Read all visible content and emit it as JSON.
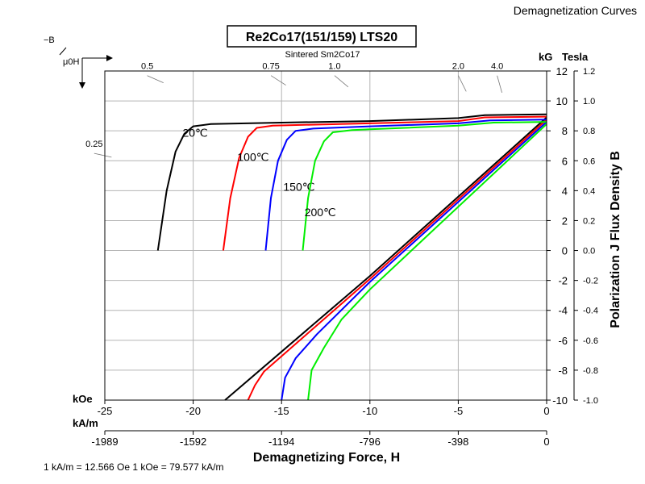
{
  "corner_title": "Demagnetization Curves",
  "chart_data": {
    "type": "line",
    "title": "Re2Co17(151/159) LTS20",
    "subtitle": "Sintered Sm2Co17",
    "xlabel": "Demagnetizing Force, H",
    "ylabel": "Polarization J Flux Density B",
    "x_unit_primary": "kOe",
    "x_unit_secondary": "kA/m",
    "y_unit_primary": "kG",
    "y_unit_secondary": "Tesla",
    "xlim": [
      -25,
      0
    ],
    "ylim": [
      -10,
      12
    ],
    "x_ticks_koe": [
      "-25",
      "-20",
      "-15",
      "-10",
      "-5",
      "0"
    ],
    "x_ticks_kam": [
      {
        "value": -25,
        "label": "-1989"
      },
      {
        "value": -20,
        "label": "-1592"
      },
      {
        "value": -15,
        "label": "-1194"
      },
      {
        "value": -10,
        "label": "-796"
      },
      {
        "value": -5,
        "label": "-398"
      },
      {
        "value": 0,
        "label": "0"
      }
    ],
    "y_ticks_kg": [
      "-10",
      "-8",
      "-6",
      "-4",
      "-2",
      "0",
      "2",
      "4",
      "6",
      "8",
      "10",
      "12"
    ],
    "y_ticks_tesla": [
      "-1.0",
      "-0.8",
      "-0.6",
      "-0.4",
      "-0.2",
      "0.0",
      "0.2",
      "0.4",
      "0.6",
      "0.8",
      "1.0",
      "1.2"
    ],
    "permeance_labels": [
      {
        "label": "0.5",
        "x": -22.6,
        "y": 11.8
      },
      {
        "label": "0.75",
        "x": -15.6,
        "y": 11.8
      },
      {
        "label": "1.0",
        "x": -12.0,
        "y": 11.8
      },
      {
        "label": "2.0",
        "x": -5.0,
        "y": 11.8
      },
      {
        "label": "4.0",
        "x": -2.8,
        "y": 11.8
      },
      {
        "label": "0.25",
        "x": -25.6,
        "y": 6.6
      }
    ],
    "corner_label_b": "−B",
    "corner_label_mu": "μ0H",
    "grid": true,
    "series": [
      {
        "name": "20℃",
        "color": "#000000",
        "label_at": [
          -20.6,
          7.6
        ],
        "j": [
          [
            -22.0,
            0
          ],
          [
            -21.5,
            4.0
          ],
          [
            -21.0,
            6.6
          ],
          [
            -20.5,
            7.8
          ],
          [
            -20.0,
            8.3
          ],
          [
            -19.0,
            8.45
          ],
          [
            -15.0,
            8.55
          ],
          [
            -10.0,
            8.65
          ],
          [
            -5.0,
            8.85
          ],
          [
            -3.5,
            9.05
          ],
          [
            0,
            9.1
          ]
        ],
        "b": [
          [
            -18.2,
            -10
          ],
          [
            -10.0,
            -1.7
          ],
          [
            0,
            8.9
          ]
        ]
      },
      {
        "name": "100℃",
        "color": "#ff0000",
        "label_at": [
          -17.5,
          6.0
        ],
        "j": [
          [
            -18.3,
            0
          ],
          [
            -17.9,
            3.5
          ],
          [
            -17.4,
            6.2
          ],
          [
            -16.9,
            7.6
          ],
          [
            -16.4,
            8.2
          ],
          [
            -15.5,
            8.35
          ],
          [
            -10.0,
            8.5
          ],
          [
            -5.0,
            8.65
          ],
          [
            -3.5,
            8.9
          ],
          [
            0,
            8.95
          ]
        ],
        "b": [
          [
            -16.9,
            -10
          ],
          [
            -16.5,
            -9.0
          ],
          [
            -16.0,
            -8.1
          ],
          [
            -10.0,
            -1.9
          ],
          [
            0,
            8.75
          ]
        ]
      },
      {
        "name": "150℃",
        "color": "#0000ff",
        "label_at": [
          -14.9,
          4.0
        ],
        "j": [
          [
            -15.9,
            0
          ],
          [
            -15.6,
            3.5
          ],
          [
            -15.2,
            6.0
          ],
          [
            -14.7,
            7.4
          ],
          [
            -14.2,
            8.0
          ],
          [
            -13.2,
            8.15
          ],
          [
            -10.0,
            8.3
          ],
          [
            -5.0,
            8.5
          ],
          [
            -3.2,
            8.7
          ],
          [
            0,
            8.75
          ]
        ],
        "b": [
          [
            -15.0,
            -10
          ],
          [
            -14.8,
            -8.5
          ],
          [
            -14.2,
            -7.2
          ],
          [
            -13.0,
            -5.6
          ],
          [
            -10.0,
            -2.1
          ],
          [
            0,
            8.6
          ]
        ]
      },
      {
        "name": "200℃",
        "color": "#00ee00",
        "label_at": [
          -13.7,
          2.3
        ],
        "j": [
          [
            -13.8,
            0
          ],
          [
            -13.5,
            3.5
          ],
          [
            -13.1,
            6.0
          ],
          [
            -12.6,
            7.3
          ],
          [
            -12.1,
            7.9
          ],
          [
            -11.0,
            8.05
          ],
          [
            -10.0,
            8.1
          ],
          [
            -5.0,
            8.35
          ],
          [
            -3.0,
            8.55
          ],
          [
            0,
            8.6
          ]
        ],
        "b": [
          [
            -13.5,
            -10
          ],
          [
            -13.3,
            -8.0
          ],
          [
            -12.6,
            -6.5
          ],
          [
            -11.6,
            -4.6
          ],
          [
            -10.0,
            -2.6
          ],
          [
            0,
            8.45
          ]
        ]
      }
    ]
  },
  "footer_note": "1 kA/m = 12.566 Oe  1 kOe = 79.577 kA/m"
}
